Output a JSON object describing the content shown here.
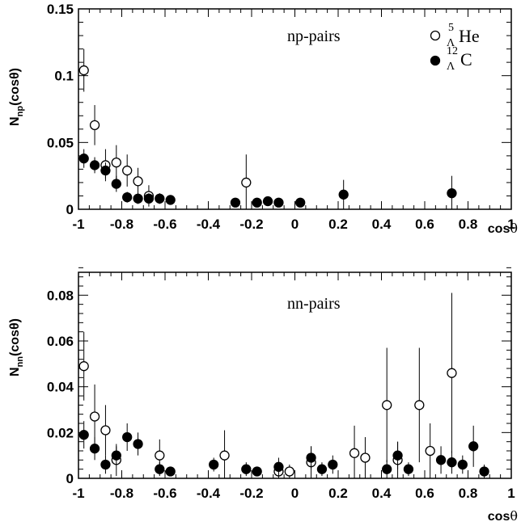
{
  "chart_data": [
    {
      "type": "scatter",
      "annotation": "np-pairs",
      "xlabel": "cos",
      "xlabel_symbol": "θ",
      "ylabel": "N",
      "ylabel_sub": "np",
      "ylabel_suffix": "(cosθ)",
      "xlim": [
        -1,
        1
      ],
      "ylim": [
        0,
        0.15
      ],
      "xticks": [
        "-1",
        "-0.8",
        "-0.6",
        "-0.4",
        "-0.2",
        "0",
        "0.2",
        "0.4",
        "0.6",
        "0.8",
        "1"
      ],
      "xtick_values": [
        -1,
        -0.8,
        -0.6,
        -0.4,
        -0.2,
        0,
        0.2,
        0.4,
        0.6,
        0.8,
        1
      ],
      "yticks": [
        "0",
        "0.05",
        "0.1",
        "0.15"
      ],
      "ytick_values": [
        0,
        0.05,
        0.1,
        0.15
      ],
      "legend": {
        "position": "top-right",
        "entries": [
          {
            "sup": "5",
            "sub": "Λ",
            "label": "He",
            "marker": "open-circle"
          },
          {
            "sup": "12",
            "sub": "Λ",
            "label": "C",
            "marker": "filled-circle"
          }
        ]
      },
      "series": [
        {
          "name": "5ΛHe",
          "marker": "open",
          "points": [
            {
              "x": -0.975,
              "y": 0.104,
              "err": 0.016
            },
            {
              "x": -0.925,
              "y": 0.063,
              "err": 0.015
            },
            {
              "x": -0.875,
              "y": 0.033,
              "err": 0.012
            },
            {
              "x": -0.825,
              "y": 0.035,
              "err": 0.013
            },
            {
              "x": -0.775,
              "y": 0.029,
              "err": 0.012
            },
            {
              "x": -0.725,
              "y": 0.021,
              "err": 0.01
            },
            {
              "x": -0.675,
              "y": 0.01,
              "err": 0.008
            },
            {
              "x": -0.225,
              "y": 0.02,
              "err": 0.021
            }
          ]
        },
        {
          "name": "12ΛC",
          "marker": "filled",
          "points": [
            {
              "x": -0.975,
              "y": 0.038,
              "err": 0.007
            },
            {
              "x": -0.925,
              "y": 0.033,
              "err": 0.006
            },
            {
              "x": -0.875,
              "y": 0.029,
              "err": 0.006
            },
            {
              "x": -0.825,
              "y": 0.019,
              "err": 0.006
            },
            {
              "x": -0.775,
              "y": 0.009,
              "err": 0.004
            },
            {
              "x": -0.725,
              "y": 0.008,
              "err": 0.004
            },
            {
              "x": -0.675,
              "y": 0.008,
              "err": 0.004
            },
            {
              "x": -0.625,
              "y": 0.008,
              "err": 0.004
            },
            {
              "x": -0.575,
              "y": 0.007,
              "err": 0.003
            },
            {
              "x": -0.275,
              "y": 0.005,
              "err": 0.003
            },
            {
              "x": -0.175,
              "y": 0.005,
              "err": 0.003
            },
            {
              "x": -0.125,
              "y": 0.006,
              "err": 0.003
            },
            {
              "x": -0.075,
              "y": 0.005,
              "err": 0.003
            },
            {
              "x": 0.025,
              "y": 0.005,
              "err": 0.003
            },
            {
              "x": 0.225,
              "y": 0.011,
              "err": 0.011
            },
            {
              "x": 0.725,
              "y": 0.012,
              "err": 0.013
            }
          ]
        }
      ]
    },
    {
      "type": "scatter",
      "annotation": "nn-pairs",
      "xlabel": "cos",
      "xlabel_symbol": "θ",
      "ylabel": "N",
      "ylabel_sub": "nn",
      "ylabel_suffix": "(cosθ)",
      "xlim": [
        -1,
        1
      ],
      "ylim": [
        0,
        0.09
      ],
      "xticks": [
        "-1",
        "-0.8",
        "-0.6",
        "-0.4",
        "-0.2",
        "0",
        "0.2",
        "0.4",
        "0.6",
        "0.8",
        "1"
      ],
      "xtick_values": [
        -1,
        -0.8,
        -0.6,
        -0.4,
        -0.2,
        0,
        0.2,
        0.4,
        0.6,
        0.8,
        1
      ],
      "yticks": [
        "0",
        "0.02",
        "0.04",
        "0.06",
        "0.08"
      ],
      "ytick_values": [
        0,
        0.02,
        0.04,
        0.06,
        0.08
      ],
      "series": [
        {
          "name": "5ΛHe",
          "marker": "open",
          "points": [
            {
              "x": -0.975,
              "y": 0.049,
              "err": 0.015
            },
            {
              "x": -0.925,
              "y": 0.027,
              "err": 0.014
            },
            {
              "x": -0.875,
              "y": 0.021,
              "err": 0.011
            },
            {
              "x": -0.825,
              "y": 0.008,
              "err": 0.007
            },
            {
              "x": -0.625,
              "y": 0.01,
              "err": 0.007
            },
            {
              "x": -0.325,
              "y": 0.01,
              "err": 0.011
            },
            {
              "x": -0.075,
              "y": 0.003,
              "err": 0.003
            },
            {
              "x": -0.025,
              "y": 0.003,
              "err": 0.003
            },
            {
              "x": 0.075,
              "y": 0.007,
              "err": 0.007
            },
            {
              "x": 0.275,
              "y": 0.011,
              "err": 0.012
            },
            {
              "x": 0.325,
              "y": 0.009,
              "err": 0.009
            },
            {
              "x": 0.425,
              "y": 0.032,
              "err": 0.025
            },
            {
              "x": 0.475,
              "y": 0.008,
              "err": 0.008
            },
            {
              "x": 0.575,
              "y": 0.032,
              "err": 0.025
            },
            {
              "x": 0.625,
              "y": 0.012,
              "err": 0.012
            },
            {
              "x": 0.725,
              "y": 0.046,
              "err": 0.035
            }
          ]
        },
        {
          "name": "12ΛC",
          "marker": "filled",
          "points": [
            {
              "x": -0.975,
              "y": 0.019,
              "err": 0.006
            },
            {
              "x": -0.925,
              "y": 0.013,
              "err": 0.005
            },
            {
              "x": -0.875,
              "y": 0.006,
              "err": 0.004
            },
            {
              "x": -0.825,
              "y": 0.01,
              "err": 0.004
            },
            {
              "x": -0.775,
              "y": 0.018,
              "err": 0.006
            },
            {
              "x": -0.725,
              "y": 0.015,
              "err": 0.005
            },
            {
              "x": -0.625,
              "y": 0.004,
              "err": 0.003
            },
            {
              "x": -0.575,
              "y": 0.003,
              "err": 0.002
            },
            {
              "x": -0.375,
              "y": 0.006,
              "err": 0.003
            },
            {
              "x": -0.225,
              "y": 0.004,
              "err": 0.003
            },
            {
              "x": -0.175,
              "y": 0.003,
              "err": 0.002
            },
            {
              "x": -0.075,
              "y": 0.005,
              "err": 0.004
            },
            {
              "x": 0.075,
              "y": 0.009,
              "err": 0.005
            },
            {
              "x": 0.125,
              "y": 0.004,
              "err": 0.003
            },
            {
              "x": 0.175,
              "y": 0.006,
              "err": 0.004
            },
            {
              "x": 0.425,
              "y": 0.004,
              "err": 0.004
            },
            {
              "x": 0.475,
              "y": 0.01,
              "err": 0.006
            },
            {
              "x": 0.525,
              "y": 0.004,
              "err": 0.003
            },
            {
              "x": 0.675,
              "y": 0.008,
              "err": 0.006
            },
            {
              "x": 0.725,
              "y": 0.007,
              "err": 0.005
            },
            {
              "x": 0.775,
              "y": 0.006,
              "err": 0.004
            },
            {
              "x": 0.825,
              "y": 0.014,
              "err": 0.009
            },
            {
              "x": 0.875,
              "y": 0.003,
              "err": 0.003
            }
          ]
        }
      ]
    }
  ]
}
